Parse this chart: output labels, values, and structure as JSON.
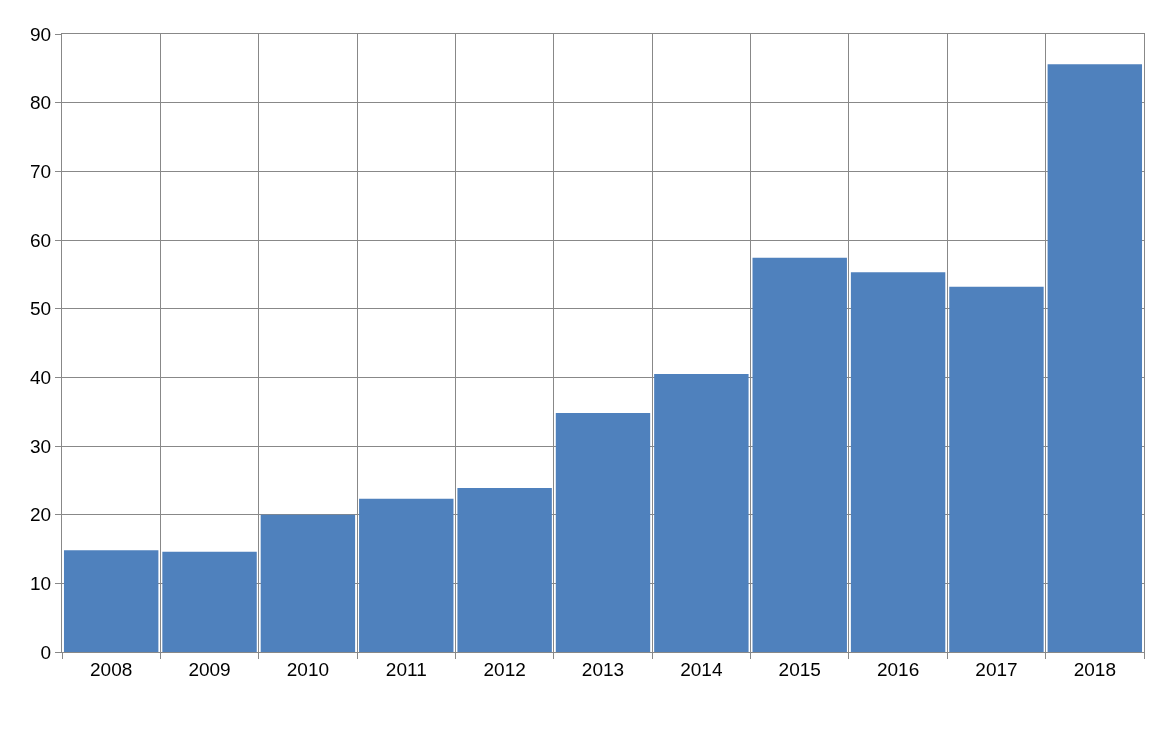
{
  "chart_data": {
    "type": "bar",
    "categories": [
      "2008",
      "2009",
      "2010",
      "2011",
      "2012",
      "2013",
      "2014",
      "2015",
      "2016",
      "2017",
      "2018"
    ],
    "values": [
      14.8,
      14.6,
      20.0,
      22.3,
      23.9,
      34.8,
      40.5,
      57.4,
      55.3,
      53.2,
      85.6
    ],
    "color": "#4f81bd",
    "ylim": [
      0,
      90
    ],
    "yticks": [
      0,
      10,
      20,
      30,
      40,
      50,
      60,
      70,
      80,
      90
    ],
    "grid": true,
    "legend": false
  }
}
